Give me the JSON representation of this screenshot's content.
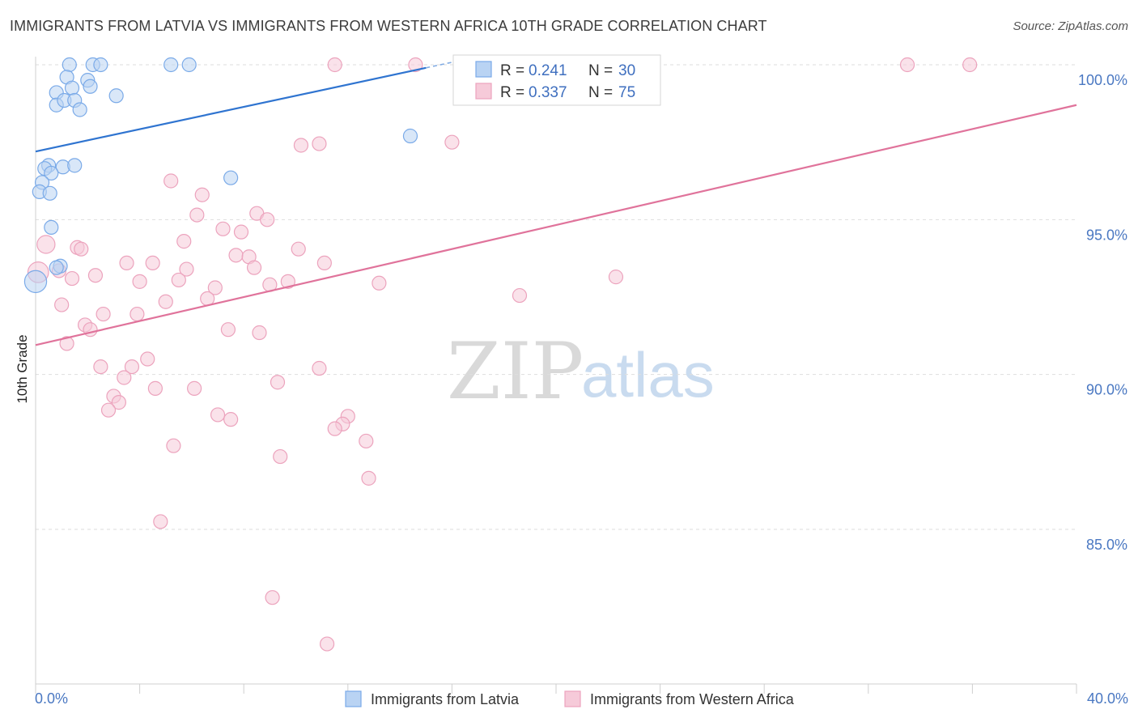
{
  "header": {
    "title": "IMMIGRANTS FROM LATVIA VS IMMIGRANTS FROM WESTERN AFRICA 10TH GRADE CORRELATION CHART",
    "source": "Source: ZipAtlas.com"
  },
  "watermark": {
    "zip": "ZIP",
    "atlas": "atlas"
  },
  "chart_data": {
    "type": "scatter",
    "title": "IMMIGRANTS FROM LATVIA VS IMMIGRANTS FROM WESTERN AFRICA 10TH GRADE CORRELATION CHART",
    "xlabel": "",
    "ylabel": "10th Grade",
    "xlim": [
      0,
      40
    ],
    "ylim": [
      80.5,
      100.8
    ],
    "x_ticks": [
      "0.0%",
      "40.0%"
    ],
    "y_ticks": [
      {
        "value": 100,
        "label": "100.0%"
      },
      {
        "value": 95,
        "label": "95.0%"
      },
      {
        "value": 90,
        "label": "90.0%"
      },
      {
        "value": 85,
        "label": "85.0%"
      }
    ],
    "legend": {
      "r_label": "R =",
      "n_label": "N =",
      "entries": [
        {
          "r": "0.241",
          "n": "30"
        },
        {
          "r": "0.337",
          "n": "75"
        }
      ]
    },
    "series": [
      {
        "name": "Immigrants from Latvia",
        "color": "#7aaae8",
        "fill": "#b9d3f3",
        "trend_color": "#2f74d0",
        "trend": {
          "x": [
            0,
            15
          ],
          "y": [
            97.2,
            99.9
          ]
        },
        "points": [
          {
            "x": 1.3,
            "y": 100.0,
            "s": 1
          },
          {
            "x": 2.2,
            "y": 100.0,
            "s": 1
          },
          {
            "x": 2.5,
            "y": 100.0,
            "s": 1
          },
          {
            "x": 5.2,
            "y": 100.0,
            "s": 1
          },
          {
            "x": 5.9,
            "y": 100.0,
            "s": 1
          },
          {
            "x": 1.2,
            "y": 99.6,
            "s": 1
          },
          {
            "x": 2.0,
            "y": 99.5,
            "s": 1
          },
          {
            "x": 0.8,
            "y": 99.1,
            "s": 1
          },
          {
            "x": 1.4,
            "y": 99.25,
            "s": 1
          },
          {
            "x": 2.1,
            "y": 99.3,
            "s": 1
          },
          {
            "x": 3.1,
            "y": 99.0,
            "s": 1
          },
          {
            "x": 0.8,
            "y": 98.7,
            "s": 1
          },
          {
            "x": 1.1,
            "y": 98.85,
            "s": 1
          },
          {
            "x": 1.5,
            "y": 98.85,
            "s": 1
          },
          {
            "x": 1.7,
            "y": 98.55,
            "s": 1
          },
          {
            "x": 14.4,
            "y": 97.7,
            "s": 1
          },
          {
            "x": 0.5,
            "y": 96.75,
            "s": 1
          },
          {
            "x": 0.35,
            "y": 96.65,
            "s": 1
          },
          {
            "x": 1.05,
            "y": 96.7,
            "s": 1
          },
          {
            "x": 1.5,
            "y": 96.75,
            "s": 1
          },
          {
            "x": 0.6,
            "y": 96.5,
            "s": 1
          },
          {
            "x": 0.25,
            "y": 96.2,
            "s": 1
          },
          {
            "x": 0.15,
            "y": 95.9,
            "s": 1
          },
          {
            "x": 0.55,
            "y": 95.85,
            "s": 1
          },
          {
            "x": 7.5,
            "y": 96.35,
            "s": 1
          },
          {
            "x": 0.6,
            "y": 94.75,
            "s": 1
          },
          {
            "x": 0.95,
            "y": 93.5,
            "s": 1
          },
          {
            "x": 0.8,
            "y": 93.45,
            "s": 1
          },
          {
            "x": 0.0,
            "y": 93.0,
            "s": 1.6
          }
        ]
      },
      {
        "name": "Immigrants from Western Africa",
        "color": "#eca3bd",
        "fill": "#f6cad9",
        "trend_color": "#e0739b",
        "trend": {
          "x": [
            0,
            40
          ],
          "y": [
            90.95,
            98.7
          ]
        },
        "points": [
          {
            "x": 11.5,
            "y": 100.0,
            "s": 1
          },
          {
            "x": 14.6,
            "y": 100.0,
            "s": 1
          },
          {
            "x": 16.5,
            "y": 100.0,
            "s": 1
          },
          {
            "x": 33.5,
            "y": 100.0,
            "s": 1
          },
          {
            "x": 35.9,
            "y": 100.0,
            "s": 1
          },
          {
            "x": 10.2,
            "y": 97.4,
            "s": 1
          },
          {
            "x": 10.9,
            "y": 97.45,
            "s": 1
          },
          {
            "x": 16.0,
            "y": 97.5,
            "s": 1
          },
          {
            "x": 5.2,
            "y": 96.25,
            "s": 1
          },
          {
            "x": 6.4,
            "y": 95.8,
            "s": 1
          },
          {
            "x": 6.2,
            "y": 95.15,
            "s": 1
          },
          {
            "x": 8.5,
            "y": 95.2,
            "s": 1
          },
          {
            "x": 8.9,
            "y": 95.0,
            "s": 1
          },
          {
            "x": 7.2,
            "y": 94.7,
            "s": 1
          },
          {
            "x": 7.9,
            "y": 94.6,
            "s": 1
          },
          {
            "x": 5.7,
            "y": 94.3,
            "s": 1
          },
          {
            "x": 0.4,
            "y": 94.2,
            "s": 1.3
          },
          {
            "x": 1.6,
            "y": 94.1,
            "s": 1
          },
          {
            "x": 1.75,
            "y": 94.05,
            "s": 1
          },
          {
            "x": 10.1,
            "y": 94.05,
            "s": 1
          },
          {
            "x": 7.7,
            "y": 93.85,
            "s": 1
          },
          {
            "x": 8.2,
            "y": 93.8,
            "s": 1
          },
          {
            "x": 3.5,
            "y": 93.6,
            "s": 1
          },
          {
            "x": 4.5,
            "y": 93.6,
            "s": 1
          },
          {
            "x": 11.1,
            "y": 93.6,
            "s": 1
          },
          {
            "x": 5.8,
            "y": 93.4,
            "s": 1
          },
          {
            "x": 8.4,
            "y": 93.45,
            "s": 1
          },
          {
            "x": 0.9,
            "y": 93.35,
            "s": 1
          },
          {
            "x": 0.1,
            "y": 93.3,
            "s": 1.5
          },
          {
            "x": 2.3,
            "y": 93.2,
            "s": 1
          },
          {
            "x": 1.4,
            "y": 93.1,
            "s": 1
          },
          {
            "x": 4.0,
            "y": 93.0,
            "s": 1
          },
          {
            "x": 5.5,
            "y": 93.05,
            "s": 1
          },
          {
            "x": 9.7,
            "y": 93.0,
            "s": 1
          },
          {
            "x": 13.2,
            "y": 92.95,
            "s": 1
          },
          {
            "x": 9.0,
            "y": 92.9,
            "s": 1
          },
          {
            "x": 6.9,
            "y": 92.8,
            "s": 1
          },
          {
            "x": 22.3,
            "y": 93.15,
            "s": 1
          },
          {
            "x": 18.6,
            "y": 92.55,
            "s": 1
          },
          {
            "x": 5.0,
            "y": 92.35,
            "s": 1
          },
          {
            "x": 6.6,
            "y": 92.45,
            "s": 1
          },
          {
            "x": 1.0,
            "y": 92.25,
            "s": 1
          },
          {
            "x": 2.6,
            "y": 91.95,
            "s": 1
          },
          {
            "x": 3.9,
            "y": 91.95,
            "s": 1
          },
          {
            "x": 1.9,
            "y": 91.6,
            "s": 1
          },
          {
            "x": 2.1,
            "y": 91.45,
            "s": 1
          },
          {
            "x": 7.4,
            "y": 91.45,
            "s": 1
          },
          {
            "x": 8.6,
            "y": 91.35,
            "s": 1
          },
          {
            "x": 1.2,
            "y": 91.0,
            "s": 1
          },
          {
            "x": 4.3,
            "y": 90.5,
            "s": 1
          },
          {
            "x": 2.5,
            "y": 90.25,
            "s": 1
          },
          {
            "x": 3.7,
            "y": 90.25,
            "s": 1
          },
          {
            "x": 10.9,
            "y": 90.2,
            "s": 1
          },
          {
            "x": 3.4,
            "y": 89.9,
            "s": 1
          },
          {
            "x": 9.3,
            "y": 89.75,
            "s": 1
          },
          {
            "x": 4.6,
            "y": 89.55,
            "s": 1
          },
          {
            "x": 6.1,
            "y": 89.55,
            "s": 1
          },
          {
            "x": 3.0,
            "y": 89.3,
            "s": 1
          },
          {
            "x": 3.2,
            "y": 89.1,
            "s": 1
          },
          {
            "x": 2.8,
            "y": 88.85,
            "s": 1
          },
          {
            "x": 7.0,
            "y": 88.7,
            "s": 1
          },
          {
            "x": 7.5,
            "y": 88.55,
            "s": 1
          },
          {
            "x": 12.0,
            "y": 88.65,
            "s": 1
          },
          {
            "x": 11.8,
            "y": 88.4,
            "s": 1
          },
          {
            "x": 11.5,
            "y": 88.25,
            "s": 1
          },
          {
            "x": 12.7,
            "y": 87.85,
            "s": 1
          },
          {
            "x": 5.3,
            "y": 87.7,
            "s": 1
          },
          {
            "x": 9.4,
            "y": 87.35,
            "s": 1
          },
          {
            "x": 12.8,
            "y": 86.65,
            "s": 1
          },
          {
            "x": 4.8,
            "y": 85.25,
            "s": 1
          },
          {
            "x": 9.1,
            "y": 82.8,
            "s": 1
          },
          {
            "x": 11.2,
            "y": 81.3,
            "s": 1
          }
        ]
      }
    ]
  }
}
